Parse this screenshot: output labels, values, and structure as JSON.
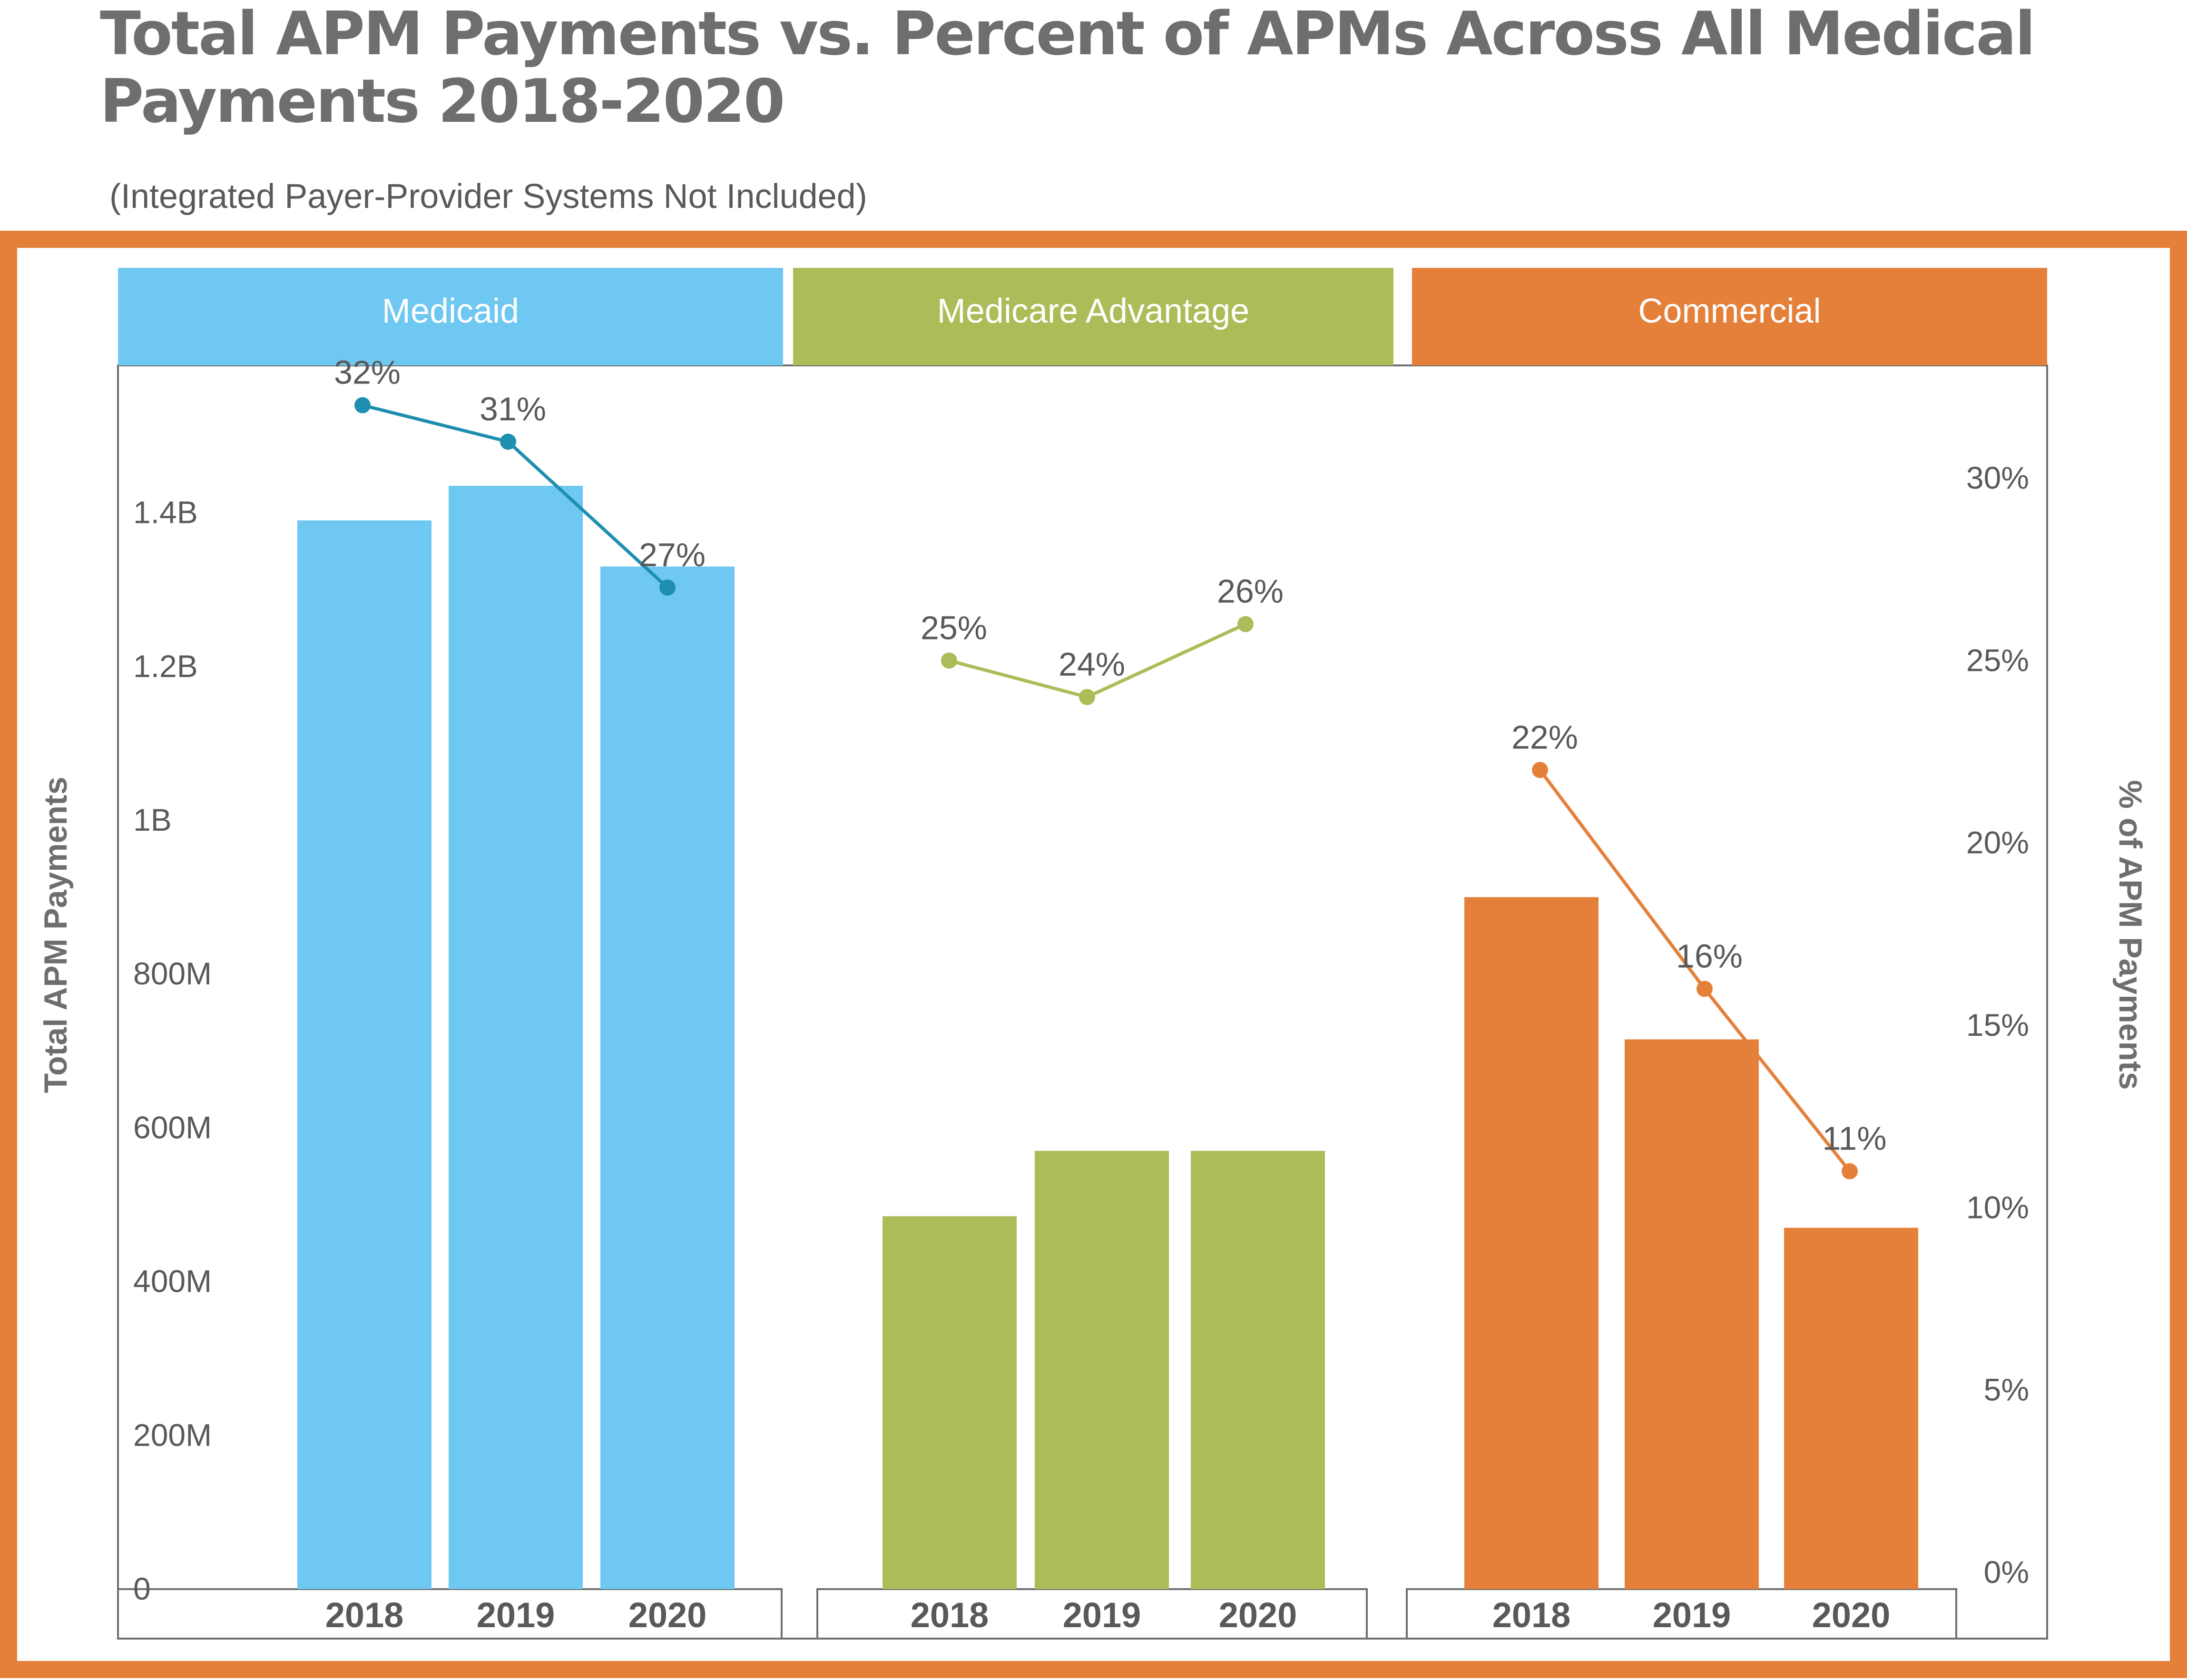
{
  "title": "Total APM Payments vs. Percent of APMs Across All Medical Payments 2018-2020",
  "subtitle": "(Integrated Payer-Provider Systems Not Included)",
  "colors": {
    "frame": "#e5803a",
    "medicaid": "#6ec8f1",
    "medicaid_line": "#1f8fb0",
    "medicare": "#adbc58",
    "commercial": "#e5803a",
    "text": "#58595b"
  },
  "chart_data": {
    "type": "bar",
    "y_left": {
      "label": "Total APM Payments",
      "ticks": [
        0,
        200000000,
        400000000,
        600000000,
        800000000,
        1000000000,
        1200000000,
        1400000000
      ],
      "tick_labels": [
        "0",
        "200M",
        "400M",
        "600M",
        "800M",
        "1B",
        "1.2B",
        "1.4B"
      ]
    },
    "y_right": {
      "label": "% of APM Payments",
      "ticks": [
        0,
        5,
        10,
        15,
        20,
        25,
        30
      ],
      "tick_labels": [
        "0%",
        "5%",
        "10%",
        "15%",
        "20%",
        "25%",
        "30%"
      ]
    },
    "groups": [
      {
        "name": "Medicaid",
        "color": "#6ec8f1",
        "line_color": "#1f8fb0",
        "categories": [
          "2018",
          "2019",
          "2020"
        ],
        "payments": [
          1390000000,
          1435000000,
          1330000000
        ],
        "percent": [
          32,
          31,
          27
        ],
        "percent_labels": [
          "32%",
          "31%",
          "27%"
        ]
      },
      {
        "name": "Medicare Advantage",
        "color": "#adbc58",
        "line_color": "#adbc58",
        "categories": [
          "2018",
          "2019",
          "2020"
        ],
        "payments": [
          485000000,
          570000000,
          570000000
        ],
        "percent": [
          25,
          24,
          26
        ],
        "percent_labels": [
          "25%",
          "24%",
          "26%"
        ]
      },
      {
        "name": "Commercial",
        "color": "#e5803a",
        "line_color": "#e5803a",
        "categories": [
          "2018",
          "2019",
          "2020"
        ],
        "payments": [
          900000000,
          715000000,
          470000000
        ],
        "percent": [
          22,
          16,
          11
        ],
        "percent_labels": [
          "22%",
          "16%",
          "11%"
        ]
      }
    ]
  }
}
